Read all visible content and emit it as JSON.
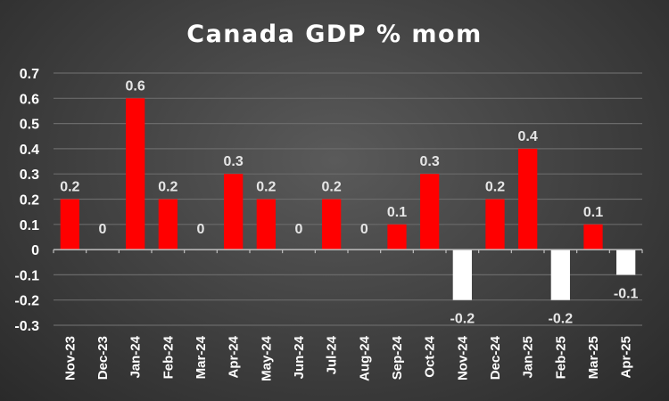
{
  "chart_data": {
    "type": "bar",
    "title": "Canada GDP % mom",
    "xlabel": "",
    "ylabel": "",
    "ylim": [
      -0.3,
      0.7
    ],
    "yticks": [
      0.7,
      0.6,
      0.5,
      0.4,
      0.3,
      0.2,
      0.1,
      0,
      -0.1,
      -0.2,
      -0.3
    ],
    "ytick_labels": [
      "0.7",
      "0.6",
      "0.5",
      "0.4",
      "0.3",
      "0.2",
      "0.1",
      "0",
      "-0.1",
      "-0.2",
      "-0.3"
    ],
    "grid": true,
    "legend": "none",
    "categories": [
      "Nov-23",
      "Dec-23",
      "Jan-24",
      "Feb-24",
      "Mar-24",
      "Apr-24",
      "May-24",
      "Jun-24",
      "Jul-24",
      "Aug-24",
      "Sep-24",
      "Oct-24",
      "Nov-24",
      "Dec-24",
      "Jan-25",
      "Feb-25",
      "Mar-25",
      "Apr-25"
    ],
    "values": [
      0.2,
      0,
      0.6,
      0.2,
      0,
      0.3,
      0.2,
      0,
      0.2,
      0,
      0.1,
      0.3,
      -0.2,
      0.2,
      0.4,
      -0.2,
      0.1,
      -0.1
    ],
    "data_labels": [
      "0.2",
      "0",
      "0.6",
      "0.2",
      "0",
      "0.3",
      "0.2",
      "0",
      "0.2",
      "0",
      "0.1",
      "0.3",
      "-0.2",
      "0.2",
      "0.4",
      "-0.2",
      "0.1",
      "-0.1"
    ],
    "colors": {
      "positive": "#ff0000",
      "negative": "#ffffff",
      "grid": "#6a6a6a",
      "axis": "#bfbfbf"
    }
  }
}
